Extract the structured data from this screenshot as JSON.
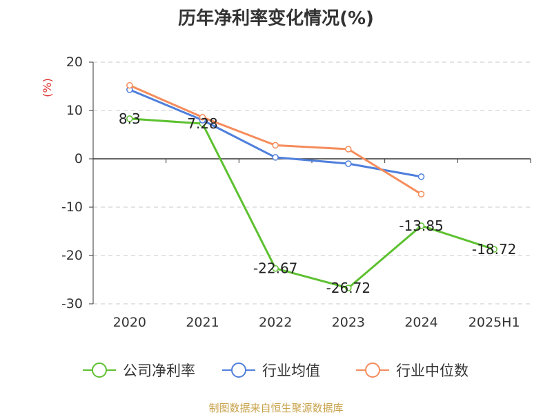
{
  "chart_data": {
    "type": "line",
    "title": "历年净利率变化情况(%)",
    "ylabel": "(%)",
    "xlabel": "",
    "categories": [
      "2020",
      "2021",
      "2022",
      "2023",
      "2024",
      "2025H1"
    ],
    "ylim": [
      -30,
      20
    ],
    "yticks": [
      "20",
      "10",
      "0",
      "-10",
      "-20",
      "-30"
    ],
    "grid": true,
    "legend_position": "bottom",
    "series": [
      {
        "name": "公司净利率",
        "color": "#5dc130",
        "values": [
          8.3,
          7.28,
          -22.67,
          -26.72,
          -13.85,
          -18.72
        ],
        "labels": [
          "8.3",
          "7.28",
          "-22.67",
          "-26.72",
          "-13.85",
          "-18.72"
        ]
      },
      {
        "name": "行业均值",
        "color": "#4f7fdc",
        "values": [
          14.3,
          8.0,
          0.3,
          -1.0,
          -3.7,
          null
        ]
      },
      {
        "name": "行业中位数",
        "color": "#f58c5b",
        "values": [
          15.2,
          8.6,
          2.8,
          2.0,
          -7.3,
          null
        ]
      }
    ]
  },
  "source_text": "制图数据来自恒生聚源数据库"
}
